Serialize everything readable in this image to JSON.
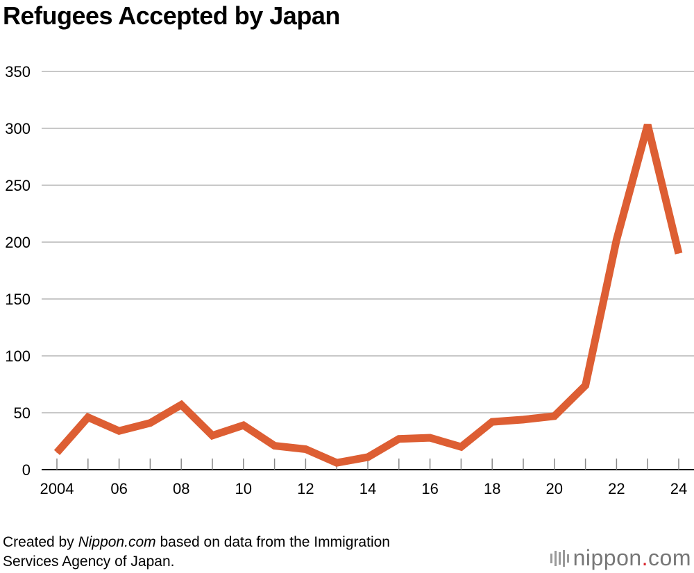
{
  "title": "Refugees Accepted by Japan",
  "footer": {
    "prefix": "Created by ",
    "source_italic": "Nippon.com",
    "suffix_line1": " based on data from the Immigration",
    "line2": "Services Agency of Japan."
  },
  "logo": {
    "name": "nippon",
    "dot": ".",
    "tld": "com",
    "icon": "sound-bars-icon"
  },
  "colors": {
    "line": "#DD5E33",
    "grid": "#c8c8c8",
    "logo_dot": "#d9232b"
  },
  "chart_data": {
    "type": "line",
    "title": "Refugees Accepted by Japan",
    "xlabel": "",
    "ylabel": "",
    "x": [
      2004,
      2005,
      2006,
      2007,
      2008,
      2009,
      2010,
      2011,
      2012,
      2013,
      2014,
      2015,
      2016,
      2017,
      2018,
      2019,
      2020,
      2021,
      2022,
      2023,
      2024
    ],
    "series": [
      {
        "values": [
          15,
          46,
          34,
          41,
          57,
          30,
          39,
          21,
          18,
          6,
          11,
          27,
          28,
          20,
          42,
          44,
          47,
          74,
          202,
          303,
          190
        ]
      }
    ],
    "ylim": [
      0,
      350
    ],
    "yticks": [
      0,
      50,
      100,
      150,
      200,
      250,
      300,
      350
    ],
    "xtick_values": [
      2004,
      2006,
      2008,
      2010,
      2012,
      2014,
      2016,
      2018,
      2020,
      2022,
      2024
    ],
    "xtick_labels": [
      "2004",
      "06",
      "08",
      "10",
      "12",
      "14",
      "16",
      "18",
      "20",
      "22",
      "24"
    ],
    "grid": true,
    "legend": "none"
  }
}
